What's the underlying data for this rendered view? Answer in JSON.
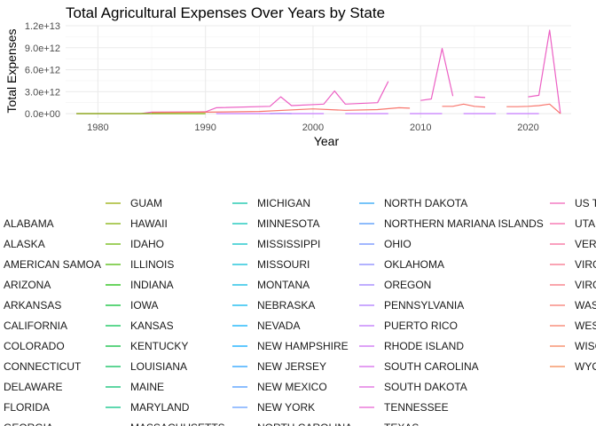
{
  "chart_data": {
    "type": "line",
    "title": "Total Agricultural Expenses Over Years by State",
    "xlabel": "Year",
    "ylabel": "Total Expenses",
    "xlim": [
      1977,
      2024
    ],
    "ylim": [
      -600000000000.0,
      12000000000000.0
    ],
    "x_ticks": [
      1980,
      1990,
      2000,
      2010,
      2020
    ],
    "x_tick_labels": [
      "1980",
      "1990",
      "2000",
      "2010",
      "2020"
    ],
    "y_ticks": [
      0,
      3000000000000.0,
      6000000000000.0,
      9000000000000.0,
      12000000000000.0
    ],
    "y_tick_labels": [
      "0.0e+00",
      "3.0e+12",
      "6.0e+12",
      "9.0e+12",
      "1.2e+13"
    ],
    "grid": true,
    "legend_position": "bottom",
    "legend": [
      {
        "label": "ALABAMA",
        "color": "#F8766D"
      },
      {
        "label": "ALASKA",
        "color": "#F67F4D"
      },
      {
        "label": "AMERICAN SAMOA",
        "color": "#F0872D"
      },
      {
        "label": "ARIZONA",
        "color": "#E98F00"
      },
      {
        "label": "ARKANSAS",
        "color": "#E09600"
      },
      {
        "label": "CALIFORNIA",
        "color": "#D69D00"
      },
      {
        "label": "COLORADO",
        "color": "#CAA300"
      },
      {
        "label": "CONNECTICUT",
        "color": "#BDA900"
      },
      {
        "label": "DELAWARE",
        "color": "#AFAE00"
      },
      {
        "label": "FLORIDA",
        "color": "#A0B300"
      },
      {
        "label": "GEORGIA",
        "color": "#8FB700"
      },
      {
        "label": "GUAM",
        "color": "#93AA00"
      },
      {
        "label": "HAWAII",
        "color": "#7FAE00"
      },
      {
        "label": "IDAHO",
        "color": "#68B300"
      },
      {
        "label": "ILLINOIS",
        "color": "#4BB700"
      },
      {
        "label": "INDIANA",
        "color": "#13BB00"
      },
      {
        "label": "IOWA",
        "color": "#00BE2F"
      },
      {
        "label": "KANSAS",
        "color": "#00C04E"
      },
      {
        "label": "KENTUCKY",
        "color": "#00BA38"
      },
      {
        "label": "LOUISIANA",
        "color": "#00BC56"
      },
      {
        "label": "MAINE",
        "color": "#00BE6C"
      },
      {
        "label": "MARYLAND",
        "color": "#00C080"
      },
      {
        "label": "MASSACHUSETTS",
        "color": "#00C192"
      },
      {
        "label": "MICHIGAN",
        "color": "#00C1A3"
      },
      {
        "label": "MINNESOTA",
        "color": "#00C0B4"
      },
      {
        "label": "MISSISSIPPI",
        "color": "#00BFC4"
      },
      {
        "label": "MISSOURI",
        "color": "#00BCD3"
      },
      {
        "label": "MONTANA",
        "color": "#00B8E1"
      },
      {
        "label": "NEBRASKA",
        "color": "#00B3EE"
      },
      {
        "label": "NEVADA",
        "color": "#00ADF9"
      },
      {
        "label": "NEW HAMPSHIRE",
        "color": "#00A6FF"
      },
      {
        "label": "NEW JERSEY",
        "color": "#1F9EFF"
      },
      {
        "label": "NEW MEXICO",
        "color": "#4796FF"
      },
      {
        "label": "NEW YORK",
        "color": "#619CFF"
      },
      {
        "label": "NORTH CAROLINA",
        "color": "#00B4EF"
      },
      {
        "label": "NORTH DAKOTA",
        "color": "#24A0F5"
      },
      {
        "label": "NORTHERN MARIANA ISLANDS",
        "color": "#4A93FA"
      },
      {
        "label": "OHIO",
        "color": "#6A8CFF"
      },
      {
        "label": "OKLAHOMA",
        "color": "#8485FF"
      },
      {
        "label": "OREGON",
        "color": "#9A7EFF"
      },
      {
        "label": "PENNSYLVANIA",
        "color": "#AC77FF"
      },
      {
        "label": "PUERTO RICO",
        "color": "#BC70FA"
      },
      {
        "label": "RHODE ISLAND",
        "color": "#C96AF2"
      },
      {
        "label": "SOUTH CAROLINA",
        "color": "#D466E9"
      },
      {
        "label": "SOUTH DAKOTA",
        "color": "#DE63DE"
      },
      {
        "label": "TENNESSEE",
        "color": "#E661D2"
      },
      {
        "label": "TEXAS",
        "color": "#EC60C4"
      },
      {
        "label": "US T",
        "color": "#F161B6"
      },
      {
        "label": "UTA",
        "color": "#F564A6"
      },
      {
        "label": "VER",
        "color": "#F76897"
      },
      {
        "label": "VIRG",
        "color": "#F86D88"
      },
      {
        "label": "VIRG",
        "color": "#F8727A"
      },
      {
        "label": "WAS",
        "color": "#F7776D"
      },
      {
        "label": "WES",
        "color": "#F67B63"
      },
      {
        "label": "WISC",
        "color": "#F57F58"
      },
      {
        "label": "WYO",
        "color": "#F4834E"
      }
    ],
    "series": [
      {
        "color": "#EC60C4",
        "points": [
          [
            1978,
            0
          ],
          [
            1984,
            10000000000.0
          ],
          [
            1985,
            200000000000.0
          ],
          [
            1989,
            230000000000.0
          ],
          [
            1990,
            250000000000.0
          ],
          [
            1991,
            800000000000.0
          ],
          [
            1996,
            1000000000000.0
          ],
          [
            1997,
            2300000000000.0
          ],
          [
            1998,
            1100000000000.0
          ],
          [
            2001,
            1300000000000.0
          ],
          [
            2002,
            3100000000000.0
          ],
          [
            2003,
            1300000000000.0
          ],
          [
            2006,
            1500000000000.0
          ],
          [
            2007,
            4400000000000.0
          ]
        ]
      },
      {
        "color": "#EC60C4",
        "points": [
          [
            2010,
            1800000000000.0
          ],
          [
            2011,
            2000000000000.0
          ],
          [
            2012,
            8900000000000.0
          ],
          [
            2013,
            2400000000000.0
          ]
        ]
      },
      {
        "color": "#EC60C4",
        "points": [
          [
            2015,
            2300000000000.0
          ],
          [
            2016,
            2200000000000.0
          ]
        ]
      },
      {
        "color": "#EC60C4",
        "points": [
          [
            2020,
            2300000000000.0
          ],
          [
            2021,
            2500000000000.0
          ],
          [
            2022,
            11400000000000.0
          ],
          [
            2023,
            0
          ]
        ]
      },
      {
        "color": "#F8766D",
        "points": [
          [
            1985,
            150000000000.0
          ],
          [
            1990,
            200000000000.0
          ],
          [
            1995,
            300000000000.0
          ],
          [
            2000,
            650000000000.0
          ],
          [
            2003,
            450000000000.0
          ],
          [
            2006,
            550000000000.0
          ],
          [
            2008,
            800000000000.0
          ],
          [
            2009,
            750000000000.0
          ]
        ]
      },
      {
        "color": "#F8766D",
        "points": [
          [
            2012,
            1000000000000.0
          ],
          [
            2013,
            1000000000000.0
          ],
          [
            2014,
            1300000000000.0
          ],
          [
            2015,
            1000000000000.0
          ],
          [
            2016,
            900000000000.0
          ]
        ]
      },
      {
        "color": "#F8766D",
        "points": [
          [
            2018,
            950000000000.0
          ],
          [
            2019,
            950000000000.0
          ],
          [
            2020,
            1000000000000.0
          ],
          [
            2021,
            1100000000000.0
          ],
          [
            2022,
            1300000000000.0
          ],
          [
            2023,
            0
          ]
        ]
      },
      {
        "color": "#7CAE00",
        "points": [
          [
            1978,
            0
          ],
          [
            1983,
            0
          ],
          [
            1985,
            0
          ],
          [
            1990,
            0
          ]
        ]
      },
      {
        "color": "#00B4EF",
        "points": [
          [
            1996,
            0
          ],
          [
            1997,
            30000000000.0
          ],
          [
            1998,
            0
          ]
        ]
      },
      {
        "color": "#C77CFF",
        "points": [
          [
            1991,
            0
          ],
          [
            2001,
            0
          ]
        ]
      },
      {
        "color": "#C77CFF",
        "points": [
          [
            2003,
            0
          ],
          [
            2007,
            0
          ]
        ]
      },
      {
        "color": "#C77CFF",
        "points": [
          [
            2009,
            0
          ],
          [
            2012,
            0
          ]
        ]
      },
      {
        "color": "#C77CFF",
        "points": [
          [
            2014,
            0
          ],
          [
            2017,
            0
          ]
        ]
      },
      {
        "color": "#C77CFF",
        "points": [
          [
            2018,
            0
          ],
          [
            2021,
            0
          ]
        ]
      }
    ]
  }
}
